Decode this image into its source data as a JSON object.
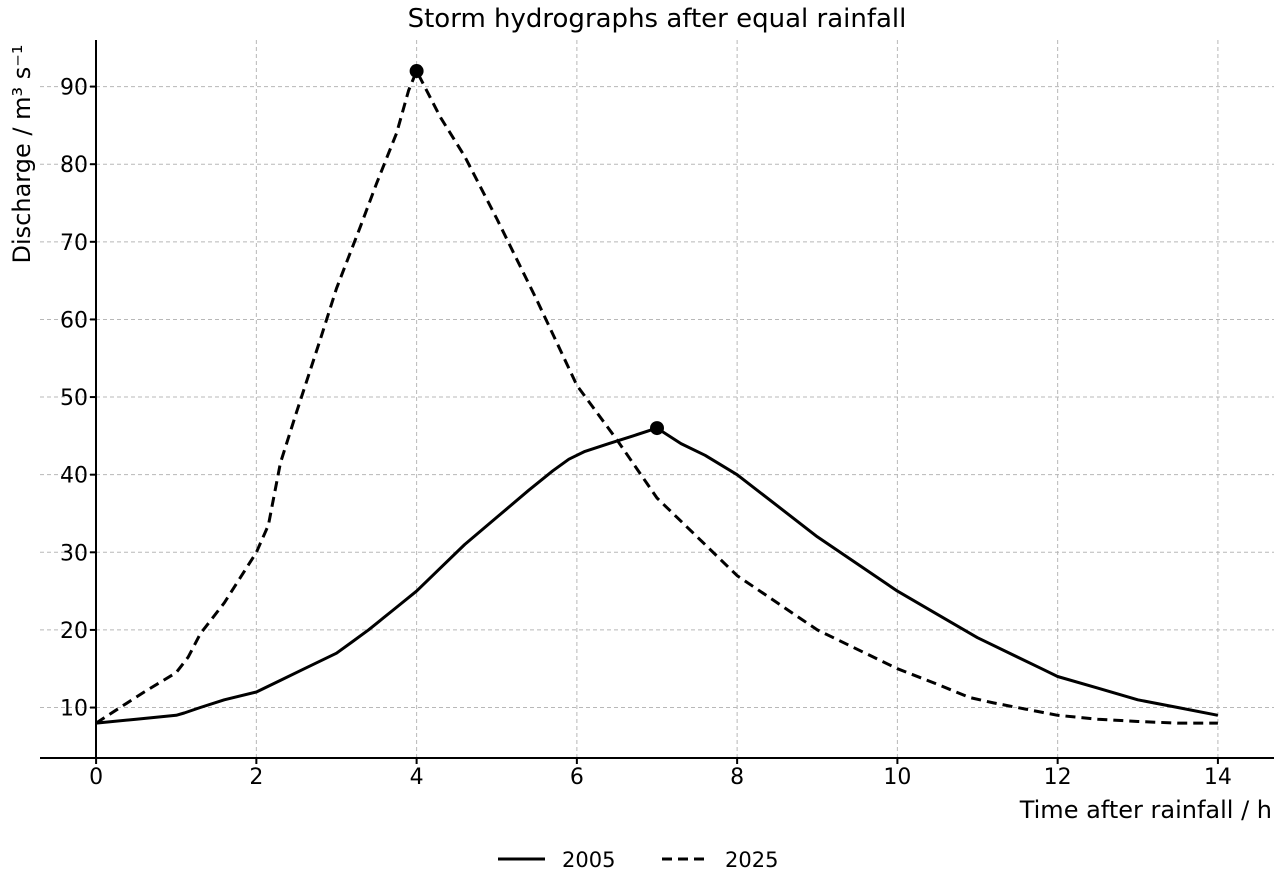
{
  "chart_data": {
    "type": "line",
    "title": "Storm hydrographs after equal rainfall",
    "xlabel": "Time after rainfall / h",
    "ylabel": "Discharge / m³ s⁻¹",
    "xlim": [
      -0.7,
      14.7
    ],
    "ylim": [
      3.5,
      96
    ],
    "x_ticks": [
      0,
      2,
      4,
      6,
      8,
      10,
      12,
      14
    ],
    "y_ticks": [
      10,
      20,
      30,
      40,
      50,
      60,
      70,
      80,
      90
    ],
    "grid": true,
    "legend_position": "bottom-center",
    "series": [
      {
        "name": "2005",
        "style": "solid",
        "color": "#000000",
        "x": [
          0,
          0.5,
          1.0,
          1.1,
          1.3,
          1.6,
          2.0,
          2.3,
          2.6,
          3.0,
          3.2,
          3.4,
          3.7,
          4.0,
          4.3,
          4.6,
          5.0,
          5.4,
          5.7,
          5.9,
          6.1,
          6.4,
          6.7,
          7.0,
          7.3,
          7.6,
          8.0,
          8.5,
          9.0,
          9.5,
          10.0,
          10.5,
          11.0,
          11.5,
          11.8,
          12.0,
          12.5,
          13.0,
          13.5,
          14.0
        ],
        "values": [
          8,
          8.5,
          9,
          9.3,
          10,
          11,
          12,
          13.5,
          15,
          17,
          18.5,
          20,
          22.5,
          25,
          28,
          31,
          34.5,
          38,
          40.5,
          42,
          43,
          44,
          45,
          46,
          44,
          42.5,
          40,
          36,
          32,
          28.5,
          25,
          22,
          19,
          16.5,
          15,
          14,
          12.5,
          11,
          10,
          9
        ]
      },
      {
        "name": "2025",
        "style": "dashed",
        "color": "#000000",
        "x": [
          0,
          0.3,
          0.6,
          1.0,
          1.15,
          1.3,
          1.6,
          2.0,
          2.15,
          2.3,
          2.5,
          2.8,
          3.0,
          3.3,
          3.5,
          3.75,
          3.9,
          4.0,
          4.15,
          4.3,
          4.6,
          5.0,
          5.5,
          6.0,
          6.5,
          7.0,
          7.5,
          8.0,
          8.5,
          9.0,
          9.5,
          10.0,
          10.5,
          10.9,
          11.2,
          11.6,
          12.0,
          12.5,
          13.0,
          13.5,
          14.0
        ],
        "values": [
          8,
          10,
          12,
          14.5,
          16.5,
          19.5,
          23.5,
          30,
          33.5,
          41.5,
          48,
          57.5,
          64,
          72,
          77.5,
          84,
          89.5,
          92,
          89,
          86,
          81,
          73,
          62.5,
          51.5,
          44.5,
          37,
          32,
          27,
          23.5,
          20,
          17.5,
          15,
          13,
          11.3,
          10.6,
          9.8,
          9,
          8.5,
          8.2,
          8,
          8
        ]
      }
    ],
    "peak_markers": [
      {
        "series": "2005",
        "x": 7,
        "y": 46
      },
      {
        "series": "2025",
        "x": 4,
        "y": 92
      }
    ]
  }
}
